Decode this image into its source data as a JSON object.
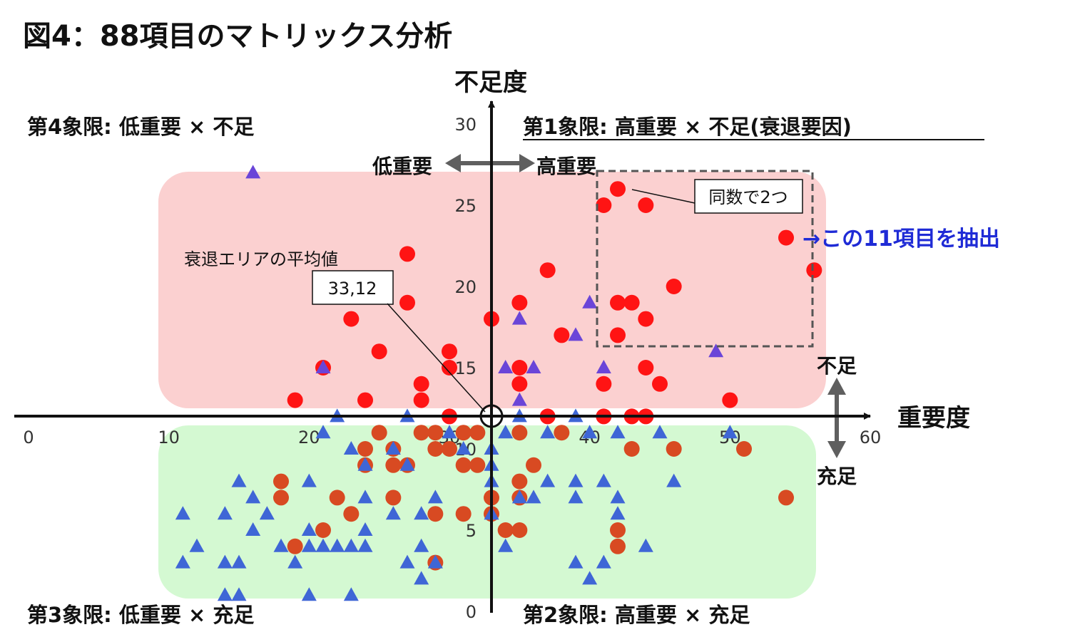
{
  "title": "図4：88項目のマトリックス分析",
  "quadrants": {
    "q1": "第1象限: 高重要 × 不足(衰退要因)",
    "q2": "第2象限: 高重要 × 充足",
    "q3": "第3象限: 低重要 × 充足",
    "q4": "第4象限: 低重要 × 不足"
  },
  "axis_labels": {
    "y_name": "不足度",
    "x_name": "重要度",
    "low_importance": "低重要",
    "high_importance": "高重要",
    "lack": "不足",
    "sufficient": "充足"
  },
  "annotations": {
    "avg_label": "衰退エリアの平均値",
    "avg_value": "33,12",
    "tie_note": "同数で2つ",
    "extract_note": "→この11項目を抽出"
  },
  "colors": {
    "decline_area": "#fbd0d0",
    "sufficient_area": "#d4f9d2",
    "red_circle": "#ff1414",
    "brown_circle": "#d84a22",
    "purple_triangle": "#6a45d8",
    "blue_triangle": "#3f66d6",
    "callout": "#1f2bd6",
    "arrow_gray": "#5f5f5f"
  },
  "chart_data": {
    "type": "scatter",
    "xlim": [
      0,
      60
    ],
    "ylim": [
      0,
      30
    ],
    "x_ticks": [
      "0",
      "10",
      "20",
      "30",
      "40",
      "50",
      "60"
    ],
    "y_ticks": [
      "0",
      "5",
      "10",
      "15",
      "20",
      "25",
      "30"
    ],
    "cross": [
      33,
      12
    ],
    "series": [
      {
        "marker": "circle",
        "color": "#ff1414",
        "points": [
          [
            42,
            26
          ],
          [
            41,
            25
          ],
          [
            44,
            25
          ],
          [
            54,
            23
          ],
          [
            27,
            22
          ],
          [
            56,
            21
          ],
          [
            37,
            21
          ],
          [
            46,
            20
          ],
          [
            27,
            19
          ],
          [
            35,
            19
          ],
          [
            42,
            19
          ],
          [
            43,
            19
          ],
          [
            23,
            18
          ],
          [
            33,
            18
          ],
          [
            44,
            18
          ],
          [
            38,
            17
          ],
          [
            42,
            17
          ],
          [
            25,
            16
          ],
          [
            30,
            16
          ],
          [
            21,
            15
          ],
          [
            30,
            15
          ],
          [
            35,
            15
          ],
          [
            44,
            15
          ],
          [
            28,
            14
          ],
          [
            35,
            14
          ],
          [
            41,
            14
          ],
          [
            45,
            14
          ],
          [
            19,
            13
          ],
          [
            24,
            13
          ],
          [
            28,
            13
          ],
          [
            50,
            13
          ],
          [
            30,
            12
          ],
          [
            37,
            12
          ],
          [
            41,
            12
          ],
          [
            43,
            12
          ],
          [
            44,
            12
          ]
        ]
      },
      {
        "marker": "circle",
        "color": "#d84a22",
        "points": [
          [
            25,
            11
          ],
          [
            28,
            11
          ],
          [
            29,
            11
          ],
          [
            31,
            11
          ],
          [
            32,
            11
          ],
          [
            35,
            11
          ],
          [
            38,
            11
          ],
          [
            29,
            10
          ],
          [
            30,
            10
          ],
          [
            24,
            10
          ],
          [
            26,
            10
          ],
          [
            43,
            10
          ],
          [
            46,
            10
          ],
          [
            51,
            10
          ],
          [
            24,
            9
          ],
          [
            26,
            9
          ],
          [
            27,
            9
          ],
          [
            31,
            9
          ],
          [
            32,
            9
          ],
          [
            36,
            9
          ],
          [
            35,
            8
          ],
          [
            18,
            8
          ],
          [
            18,
            7
          ],
          [
            22,
            7
          ],
          [
            26,
            7
          ],
          [
            35,
            7
          ],
          [
            33,
            7
          ],
          [
            54,
            7
          ],
          [
            23,
            6
          ],
          [
            29,
            6
          ],
          [
            31,
            6
          ],
          [
            33,
            6
          ],
          [
            21,
            5
          ],
          [
            34,
            5
          ],
          [
            35,
            5
          ],
          [
            42,
            5
          ],
          [
            19,
            4
          ],
          [
            42,
            4
          ],
          [
            29,
            3
          ]
        ]
      },
      {
        "marker": "triangle",
        "color": "#6a45d8",
        "points": [
          [
            16,
            27
          ],
          [
            40,
            19
          ],
          [
            35,
            18
          ],
          [
            39,
            17
          ],
          [
            49,
            16
          ],
          [
            34,
            15
          ],
          [
            41,
            15
          ],
          [
            21,
            15
          ],
          [
            36,
            15
          ],
          [
            35,
            13
          ]
        ]
      },
      {
        "marker": "triangle",
        "color": "#3f66d6",
        "points": [
          [
            22,
            12
          ],
          [
            27,
            12
          ],
          [
            35,
            12
          ],
          [
            39,
            12
          ],
          [
            21,
            11
          ],
          [
            30,
            11
          ],
          [
            34,
            11
          ],
          [
            37,
            11
          ],
          [
            40,
            11
          ],
          [
            42,
            11
          ],
          [
            45,
            11
          ],
          [
            50,
            11
          ],
          [
            23,
            10
          ],
          [
            26,
            10
          ],
          [
            31,
            10
          ],
          [
            33,
            10
          ],
          [
            24,
            9
          ],
          [
            27,
            9
          ],
          [
            33,
            9
          ],
          [
            37,
            8
          ],
          [
            39,
            8
          ],
          [
            41,
            8
          ],
          [
            46,
            8
          ],
          [
            20,
            8
          ],
          [
            15,
            8
          ],
          [
            33,
            8
          ],
          [
            24,
            7
          ],
          [
            29,
            7
          ],
          [
            16,
            7
          ],
          [
            35,
            7
          ],
          [
            36,
            7
          ],
          [
            39,
            7
          ],
          [
            42,
            7
          ],
          [
            11,
            6
          ],
          [
            14,
            6
          ],
          [
            17,
            6
          ],
          [
            26,
            6
          ],
          [
            28,
            6
          ],
          [
            33,
            6
          ],
          [
            42,
            6
          ],
          [
            16,
            5
          ],
          [
            20,
            5
          ],
          [
            24,
            5
          ],
          [
            20,
            4
          ],
          [
            21,
            4
          ],
          [
            22,
            4
          ],
          [
            23,
            4
          ],
          [
            24,
            4
          ],
          [
            28,
            4
          ],
          [
            34,
            4
          ],
          [
            44,
            4
          ],
          [
            12,
            4
          ],
          [
            18,
            4
          ],
          [
            11,
            3
          ],
          [
            14,
            3
          ],
          [
            15,
            3
          ],
          [
            19,
            3
          ],
          [
            27,
            3
          ],
          [
            29,
            3
          ],
          [
            39,
            3
          ],
          [
            41,
            3
          ],
          [
            28,
            2
          ],
          [
            40,
            2
          ],
          [
            14,
            1
          ],
          [
            15,
            1
          ],
          [
            20,
            1
          ],
          [
            23,
            1
          ]
        ]
      }
    ]
  }
}
